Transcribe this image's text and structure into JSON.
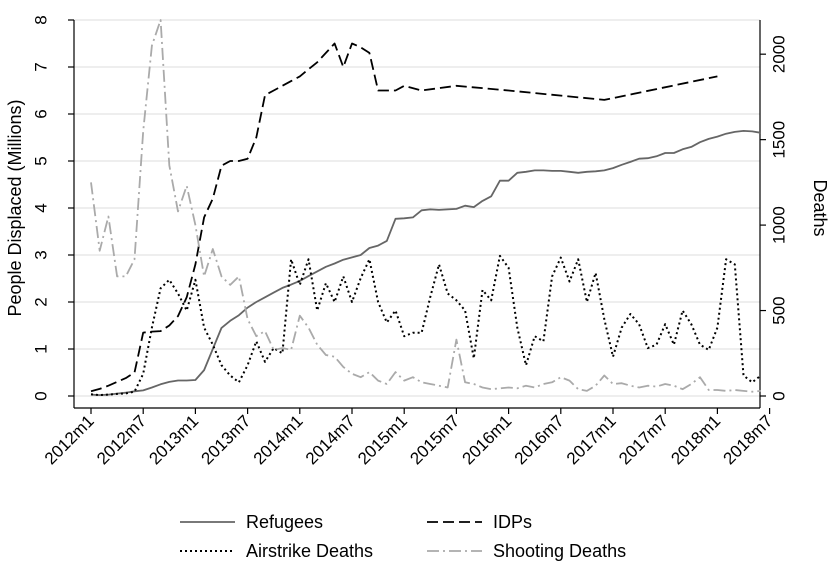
{
  "chart_data": {
    "type": "line",
    "xlabel": "",
    "ylabel": "People Displaced (Millions)",
    "y2label": "Deaths",
    "ylim": [
      0,
      8
    ],
    "y2lim": [
      0,
      2200
    ],
    "x_range": [
      "2012m1",
      "2018m8"
    ],
    "x_ticks": [
      "2012m1",
      "2012m7",
      "2013m1",
      "2013m7",
      "2014m1",
      "2014m7",
      "2015m1",
      "2015m7",
      "2016m1",
      "2016m7",
      "2017m1",
      "2017m7",
      "2018m1",
      "2018m7"
    ],
    "y_ticks": [
      "0",
      "1",
      "2",
      "3",
      "4",
      "5",
      "6",
      "7",
      "8"
    ],
    "y2_ticks": [
      "0",
      "500",
      "1000",
      "1500",
      "2000"
    ],
    "grid": true,
    "legend_position": "bottom",
    "series": [
      {
        "name": "Refugees",
        "axis": "left",
        "color": "#666666",
        "dash": "solid",
        "points": [
          [
            "2012m1",
            0.03
          ],
          [
            "2012m2",
            0.02
          ],
          [
            "2012m3",
            0.03
          ],
          [
            "2012m4",
            0.05
          ],
          [
            "2012m5",
            0.07
          ],
          [
            "2012m6",
            0.1
          ],
          [
            "2012m7",
            0.12
          ],
          [
            "2012m8",
            0.18
          ],
          [
            "2012m9",
            0.25
          ],
          [
            "2012m10",
            0.3
          ],
          [
            "2012m11",
            0.33
          ],
          [
            "2012m12",
            0.33
          ],
          [
            "2013m1",
            0.34
          ],
          [
            "2013m2",
            0.55
          ],
          [
            "2013m3",
            1.0
          ],
          [
            "2013m4",
            1.45
          ],
          [
            "2013m5",
            1.6
          ],
          [
            "2013m6",
            1.72
          ],
          [
            "2013m7",
            1.88
          ],
          [
            "2013m8",
            2.0
          ],
          [
            "2013m9",
            2.1
          ],
          [
            "2013m10",
            2.2
          ],
          [
            "2013m11",
            2.3
          ],
          [
            "2013m12",
            2.37
          ],
          [
            "2014m1",
            2.45
          ],
          [
            "2014m2",
            2.55
          ],
          [
            "2014m3",
            2.65
          ],
          [
            "2014m4",
            2.75
          ],
          [
            "2014m5",
            2.82
          ],
          [
            "2014m6",
            2.9
          ],
          [
            "2014m7",
            2.95
          ],
          [
            "2014m8",
            3.0
          ],
          [
            "2014m9",
            3.15
          ],
          [
            "2014m10",
            3.2
          ],
          [
            "2014m11",
            3.3
          ],
          [
            "2014m12",
            3.77
          ],
          [
            "2015m1",
            3.78
          ],
          [
            "2015m2",
            3.8
          ],
          [
            "2015m3",
            3.95
          ],
          [
            "2015m4",
            3.97
          ],
          [
            "2015m5",
            3.96
          ],
          [
            "2015m6",
            3.97
          ],
          [
            "2015m7",
            3.98
          ],
          [
            "2015m8",
            4.05
          ],
          [
            "2015m9",
            4.02
          ],
          [
            "2015m10",
            4.15
          ],
          [
            "2015m11",
            4.25
          ],
          [
            "2015m12",
            4.58
          ],
          [
            "2016m1",
            4.58
          ],
          [
            "2016m2",
            4.75
          ],
          [
            "2016m3",
            4.77
          ],
          [
            "2016m4",
            4.8
          ],
          [
            "2016m5",
            4.8
          ],
          [
            "2016m6",
            4.79
          ],
          [
            "2016m7",
            4.79
          ],
          [
            "2016m8",
            4.77
          ],
          [
            "2016m9",
            4.75
          ],
          [
            "2016m10",
            4.77
          ],
          [
            "2016m11",
            4.78
          ],
          [
            "2016m12",
            4.8
          ],
          [
            "2017m1",
            4.85
          ],
          [
            "2017m2",
            4.92
          ],
          [
            "2017m3",
            4.98
          ],
          [
            "2017m4",
            5.05
          ],
          [
            "2017m5",
            5.06
          ],
          [
            "2017m6",
            5.1
          ],
          [
            "2017m7",
            5.17
          ],
          [
            "2017m8",
            5.17
          ],
          [
            "2017m9",
            5.25
          ],
          [
            "2017m10",
            5.3
          ],
          [
            "2017m11",
            5.4
          ],
          [
            "2017m12",
            5.47
          ],
          [
            "2018m1",
            5.52
          ],
          [
            "2018m2",
            5.58
          ],
          [
            "2018m3",
            5.62
          ],
          [
            "2018m4",
            5.64
          ],
          [
            "2018m5",
            5.63
          ],
          [
            "2018m6",
            5.6
          ]
        ]
      },
      {
        "name": "IDPs",
        "axis": "left",
        "color": "#000000",
        "dash": "long-dash",
        "points": [
          [
            "2012m1",
            0.1
          ],
          [
            "2012m2",
            0.15
          ],
          [
            "2012m3",
            0.22
          ],
          [
            "2012m4",
            0.3
          ],
          [
            "2012m5",
            0.38
          ],
          [
            "2012m6",
            0.5
          ],
          [
            "2012m7",
            1.35
          ],
          [
            "2012m8",
            1.37
          ],
          [
            "2012m9",
            1.38
          ],
          [
            "2012m10",
            1.5
          ],
          [
            "2012m11",
            1.7
          ],
          [
            "2012m12",
            2.1
          ],
          [
            "2013m1",
            2.8
          ],
          [
            "2013m2",
            3.8
          ],
          [
            "2013m3",
            4.2
          ],
          [
            "2013m4",
            4.9
          ],
          [
            "2013m5",
            5.0
          ],
          [
            "2013m6",
            5.0
          ],
          [
            "2013m7",
            5.05
          ],
          [
            "2013m8",
            5.5
          ],
          [
            "2013m9",
            6.4
          ],
          [
            "2013m10",
            6.5
          ],
          [
            "2013m11",
            6.6
          ],
          [
            "2013m12",
            6.7
          ],
          [
            "2014m1",
            6.8
          ],
          [
            "2014m2",
            6.95
          ],
          [
            "2014m3",
            7.1
          ],
          [
            "2014m4",
            7.3
          ],
          [
            "2014m5",
            7.5
          ],
          [
            "2014m6",
            7.0
          ],
          [
            "2014m7",
            7.5
          ],
          [
            "2014m8",
            7.42
          ],
          [
            "2014m9",
            7.3
          ],
          [
            "2014m10",
            6.5
          ],
          [
            "2014m11",
            6.5
          ],
          [
            "2014m12",
            6.5
          ],
          [
            "2015m1",
            6.6
          ],
          [
            "2015m3",
            6.5
          ],
          [
            "2015m7",
            6.6
          ],
          [
            "2016m1",
            6.5
          ],
          [
            "2016m12",
            6.3
          ],
          [
            "2018m1",
            6.8
          ]
        ]
      },
      {
        "name": "Airstrike Deaths",
        "axis": "right",
        "color": "#000000",
        "dash": "dotted",
        "points": [
          [
            "2012m1",
            10
          ],
          [
            "2012m2",
            5
          ],
          [
            "2012m3",
            8
          ],
          [
            "2012m4",
            12
          ],
          [
            "2012m5",
            15
          ],
          [
            "2012m6",
            25
          ],
          [
            "2012m7",
            130
          ],
          [
            "2012m8",
            400
          ],
          [
            "2012m9",
            630
          ],
          [
            "2012m10",
            680
          ],
          [
            "2012m11",
            600
          ],
          [
            "2012m12",
            500
          ],
          [
            "2013m1",
            680
          ],
          [
            "2013m2",
            400
          ],
          [
            "2013m3",
            300
          ],
          [
            "2013m4",
            180
          ],
          [
            "2013m5",
            120
          ],
          [
            "2013m6",
            80
          ],
          [
            "2013m7",
            180
          ],
          [
            "2013m8",
            320
          ],
          [
            "2013m9",
            200
          ],
          [
            "2013m10",
            280
          ],
          [
            "2013m11",
            250
          ],
          [
            "2013m12",
            800
          ],
          [
            "2014m1",
            650
          ],
          [
            "2014m2",
            800
          ],
          [
            "2014m3",
            500
          ],
          [
            "2014m4",
            660
          ],
          [
            "2014m5",
            550
          ],
          [
            "2014m6",
            700
          ],
          [
            "2014m7",
            550
          ],
          [
            "2014m8",
            690
          ],
          [
            "2014m9",
            800
          ],
          [
            "2014m10",
            550
          ],
          [
            "2014m11",
            430
          ],
          [
            "2014m12",
            500
          ],
          [
            "2015m1",
            350
          ],
          [
            "2015m2",
            370
          ],
          [
            "2015m3",
            370
          ],
          [
            "2015m4",
            580
          ],
          [
            "2015m5",
            770
          ],
          [
            "2015m6",
            600
          ],
          [
            "2015m7",
            560
          ],
          [
            "2015m8",
            500
          ],
          [
            "2015m9",
            220
          ],
          [
            "2015m10",
            620
          ],
          [
            "2015m11",
            560
          ],
          [
            "2015m12",
            820
          ],
          [
            "2016m1",
            750
          ],
          [
            "2016m2",
            400
          ],
          [
            "2016m3",
            180
          ],
          [
            "2016m4",
            350
          ],
          [
            "2016m5",
            320
          ],
          [
            "2016m6",
            700
          ],
          [
            "2016m7",
            810
          ],
          [
            "2016m8",
            670
          ],
          [
            "2016m9",
            800
          ],
          [
            "2016m10",
            550
          ],
          [
            "2016m11",
            720
          ],
          [
            "2016m12",
            450
          ],
          [
            "2017m1",
            230
          ],
          [
            "2017m2",
            400
          ],
          [
            "2017m3",
            480
          ],
          [
            "2017m4",
            420
          ],
          [
            "2017m5",
            280
          ],
          [
            "2017m6",
            300
          ],
          [
            "2017m7",
            420
          ],
          [
            "2017m8",
            300
          ],
          [
            "2017m9",
            500
          ],
          [
            "2017m10",
            420
          ],
          [
            "2017m11",
            300
          ],
          [
            "2017m12",
            270
          ],
          [
            "2018m1",
            400
          ],
          [
            "2018m2",
            800
          ],
          [
            "2018m3",
            770
          ],
          [
            "2018m4",
            120
          ],
          [
            "2018m5",
            80
          ],
          [
            "2018m6",
            120
          ]
        ]
      },
      {
        "name": "Shooting Deaths",
        "axis": "right",
        "color": "#aaaaaa",
        "dash": "dash-dot",
        "points": [
          [
            "2012m1",
            1250
          ],
          [
            "2012m2",
            850
          ],
          [
            "2012m3",
            1050
          ],
          [
            "2012m4",
            700
          ],
          [
            "2012m5",
            700
          ],
          [
            "2012m6",
            800
          ],
          [
            "2012m7",
            1550
          ],
          [
            "2012m8",
            2050
          ],
          [
            "2012m9",
            2200
          ],
          [
            "2012m10",
            1350
          ],
          [
            "2012m11",
            1080
          ],
          [
            "2012m12",
            1230
          ],
          [
            "2013m1",
            1000
          ],
          [
            "2013m2",
            700
          ],
          [
            "2013m3",
            860
          ],
          [
            "2013m4",
            700
          ],
          [
            "2013m5",
            650
          ],
          [
            "2013m6",
            700
          ],
          [
            "2013m7",
            450
          ],
          [
            "2013m8",
            350
          ],
          [
            "2013m9",
            380
          ],
          [
            "2013m10",
            270
          ],
          [
            "2013m11",
            280
          ],
          [
            "2013m12",
            270
          ],
          [
            "2014m1",
            470
          ],
          [
            "2014m2",
            400
          ],
          [
            "2014m3",
            300
          ],
          [
            "2014m4",
            240
          ],
          [
            "2014m5",
            230
          ],
          [
            "2014m6",
            170
          ],
          [
            "2014m7",
            130
          ],
          [
            "2014m8",
            110
          ],
          [
            "2014m9",
            140
          ],
          [
            "2014m10",
            90
          ],
          [
            "2014m11",
            70
          ],
          [
            "2014m12",
            140
          ],
          [
            "2015m1",
            90
          ],
          [
            "2015m2",
            110
          ],
          [
            "2015m3",
            80
          ],
          [
            "2015m4",
            70
          ],
          [
            "2015m5",
            60
          ],
          [
            "2015m6",
            50
          ],
          [
            "2015m7",
            330
          ],
          [
            "2015m8",
            80
          ],
          [
            "2015m9",
            70
          ],
          [
            "2015m10",
            50
          ],
          [
            "2015m11",
            40
          ],
          [
            "2015m12",
            45
          ],
          [
            "2016m1",
            50
          ],
          [
            "2016m2",
            45
          ],
          [
            "2016m3",
            60
          ],
          [
            "2016m4",
            50
          ],
          [
            "2016m5",
            70
          ],
          [
            "2016m6",
            80
          ],
          [
            "2016m7",
            110
          ],
          [
            "2016m8",
            90
          ],
          [
            "2016m9",
            40
          ],
          [
            "2016m10",
            30
          ],
          [
            "2016m11",
            60
          ],
          [
            "2016m12",
            120
          ],
          [
            "2017m1",
            70
          ],
          [
            "2017m2",
            75
          ],
          [
            "2017m3",
            60
          ],
          [
            "2017m4",
            50
          ],
          [
            "2017m5",
            60
          ],
          [
            "2017m6",
            55
          ],
          [
            "2017m7",
            70
          ],
          [
            "2017m8",
            60
          ],
          [
            "2017m9",
            40
          ],
          [
            "2017m10",
            70
          ],
          [
            "2017m11",
            110
          ],
          [
            "2017m12",
            35
          ],
          [
            "2018m1",
            35
          ],
          [
            "2018m2",
            30
          ],
          [
            "2018m3",
            35
          ],
          [
            "2018m4",
            30
          ],
          [
            "2018m5",
            25
          ],
          [
            "2018m6",
            30
          ]
        ]
      }
    ]
  }
}
